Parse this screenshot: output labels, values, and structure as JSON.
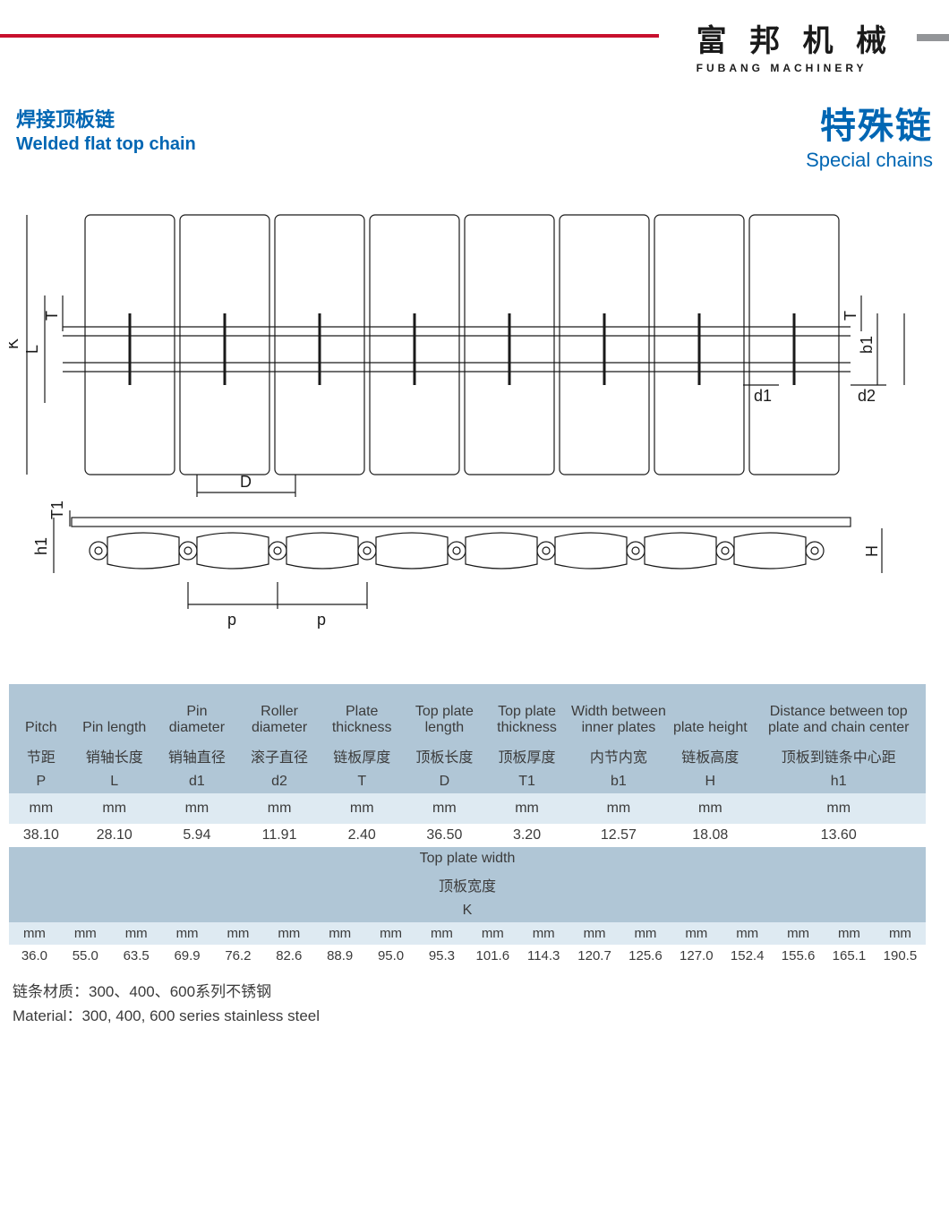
{
  "brand": {
    "cn": "富 邦 机 械",
    "en": "FUBANG MACHINERY"
  },
  "title_left": {
    "cn": "焊接顶板链",
    "en": "Welded flat top chain"
  },
  "title_right": {
    "cn": "特殊链",
    "en": "Special chains"
  },
  "colors": {
    "accent_red": "#c8102e",
    "accent_grey": "#939598",
    "brand_blue": "#0066b3",
    "table_header_dark": "#b0c6d6",
    "table_header_light": "#deeaf2",
    "text": "#3b3b3b",
    "diagram_stroke": "#1a1a1a"
  },
  "diagram": {
    "labels": [
      "K",
      "L",
      "T",
      "D",
      "T1",
      "h1",
      "p",
      "p",
      "T",
      "b1",
      "d1",
      "d2",
      "H"
    ],
    "plates_count": 8
  },
  "table_main": {
    "columns": [
      {
        "en": "Pitch",
        "cn": "节距",
        "sym": "P",
        "unit": "mm"
      },
      {
        "en": "Pin length",
        "cn": "销轴长度",
        "sym": "L",
        "unit": "mm"
      },
      {
        "en": "Pin diameter",
        "cn": "销轴直径",
        "sym": "d1",
        "unit": "mm"
      },
      {
        "en": "Roller diameter",
        "cn": "滚子直径",
        "sym": "d2",
        "unit": "mm"
      },
      {
        "en": "Plate thickness",
        "cn": "链板厚度",
        "sym": "T",
        "unit": "mm"
      },
      {
        "en": "Top plate length",
        "cn": "顶板长度",
        "sym": "D",
        "unit": "mm"
      },
      {
        "en": "Top plate thickness",
        "cn": "顶板厚度",
        "sym": "T1",
        "unit": "mm"
      },
      {
        "en": "Width between inner plates",
        "cn": "内节内宽",
        "sym": "b1",
        "unit": "mm"
      },
      {
        "en": "plate height",
        "cn": "链板高度",
        "sym": "H",
        "unit": "mm"
      },
      {
        "en": "Distance between top plate and chain center",
        "cn": "顶板到链条中心距",
        "sym": "h1",
        "unit": "mm"
      }
    ],
    "row": [
      "38.10",
      "28.10",
      "5.94",
      "11.91",
      "2.40",
      "36.50",
      "3.20",
      "12.57",
      "18.08",
      "13.60"
    ],
    "col_widths_pct": [
      7,
      9,
      9,
      9,
      9,
      9,
      9,
      11,
      9,
      19
    ]
  },
  "section2": {
    "en": "Top plate width",
    "cn": "顶板宽度",
    "sym": "K"
  },
  "table_k": {
    "unit": "mm",
    "values": [
      "36.0",
      "55.0",
      "63.5",
      "69.9",
      "76.2",
      "82.6",
      "88.9",
      "95.0",
      "95.3",
      "101.6",
      "114.3",
      "120.7",
      "125.6",
      "127.0",
      "152.4",
      "155.6",
      "165.1",
      "190.5"
    ]
  },
  "footer": {
    "cn": "链条材质：300、400、600系列不锈钢",
    "en": "Material：300, 400, 600 series stainless steel"
  }
}
